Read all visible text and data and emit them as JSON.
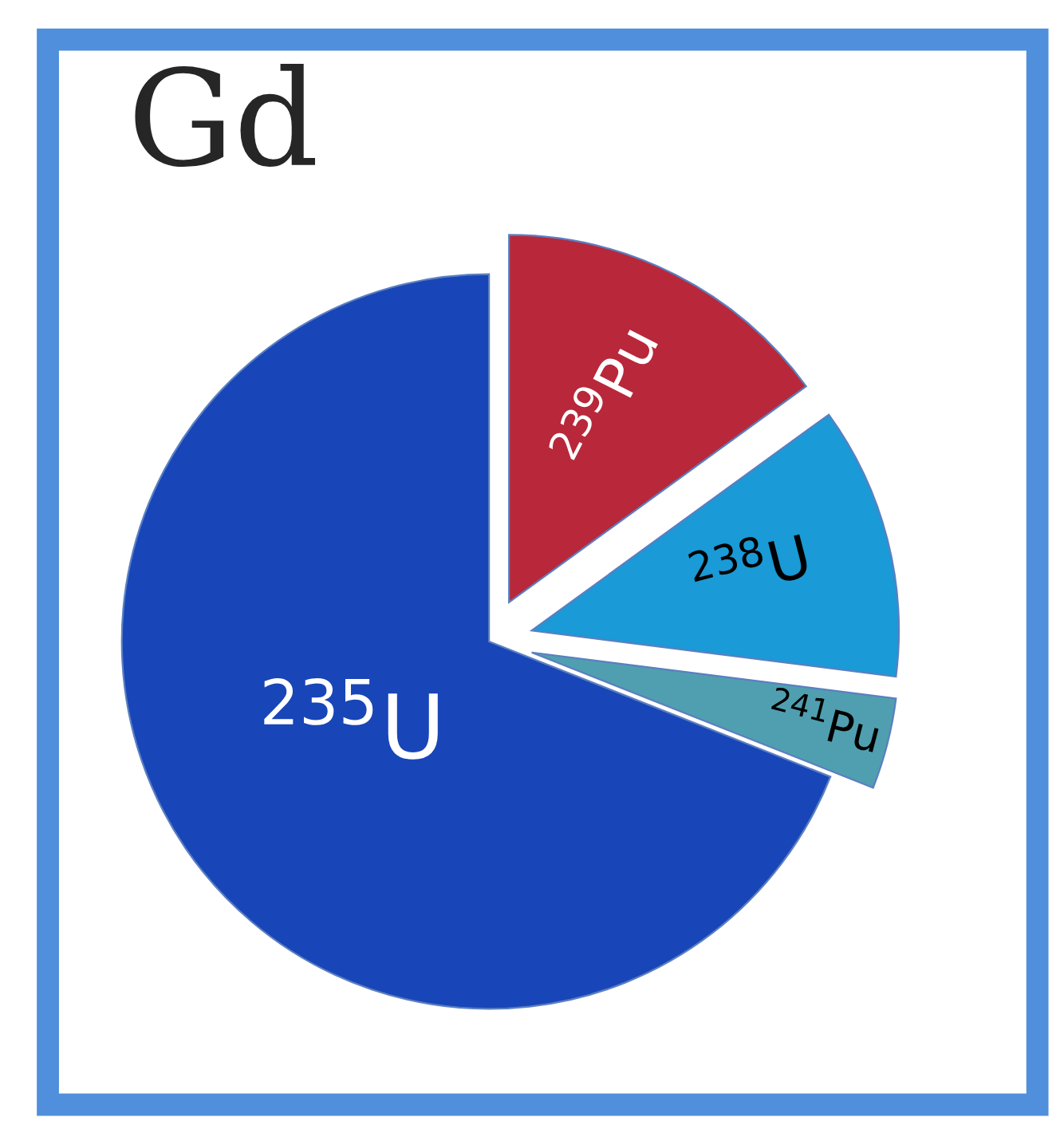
{
  "chart_data": {
    "type": "pie",
    "title": "Gd",
    "categories": [
      "$^{239}$Pu",
      "$^{238}$U",
      "$^{241}$Pu",
      "$^{235}$U"
    ],
    "values": [
      15,
      12,
      4,
      69
    ],
    "colors": [
      "#b8283a",
      "#1a9ad6",
      "#4f9fb0",
      "#1845b8"
    ]
  }
}
